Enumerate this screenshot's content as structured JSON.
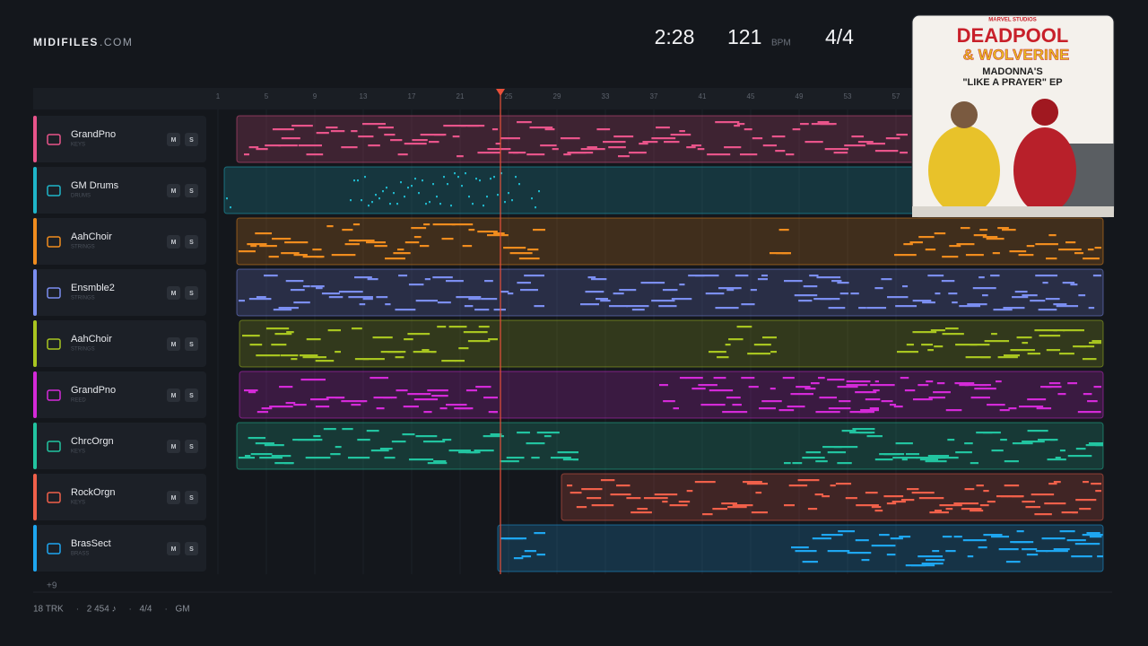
{
  "header": {
    "brand": "MIDIFILES",
    "brand_suffix": ".COM",
    "time": "2:28",
    "tempo": "121",
    "tempo_unit": "BPM",
    "meter": "4/4"
  },
  "ruler": {
    "bars": [
      1,
      5,
      9,
      13,
      17,
      21,
      25,
      29,
      33,
      37,
      41,
      45,
      49,
      53,
      57
    ]
  },
  "controls": {
    "mute": "M",
    "solo": "S"
  },
  "tracks": [
    {
      "name": "GrandPno",
      "category": "KEYS",
      "color": "#e8548a"
    },
    {
      "name": "GM Drums",
      "category": "DRUMS",
      "color": "#1fb5c9"
    },
    {
      "name": "AahChoir",
      "category": "STRINGS",
      "color": "#f08c1e"
    },
    {
      "name": "Ensmble2",
      "category": "STRINGS",
      "color": "#7b8ef0"
    },
    {
      "name": "AahChoir",
      "category": "STRINGS",
      "color": "#a8c520"
    },
    {
      "name": "GrandPno",
      "category": "REED",
      "color": "#d42ad8"
    },
    {
      "name": "ChrcOrgn",
      "category": "KEYS",
      "color": "#22c4a0"
    },
    {
      "name": "RockOrgn",
      "category": "KEYS",
      "color": "#f0604a"
    },
    {
      "name": "BrasSect",
      "category": "BRASS",
      "color": "#1ea6f0"
    }
  ],
  "more_tracks": "+9",
  "footer": {
    "items": [
      "18 TRK",
      "2 454 ♪",
      "4/4",
      "GM"
    ],
    "separator": "·"
  },
  "artwork": {
    "studio": "MARVEL STUDIOS",
    "title_line1": "DEADPOOL",
    "title_line2": "& WOLVERINE",
    "subtitle_line1": "MADONNA'S",
    "subtitle_line2": "\"LIKE A PRAYER\" EP"
  }
}
